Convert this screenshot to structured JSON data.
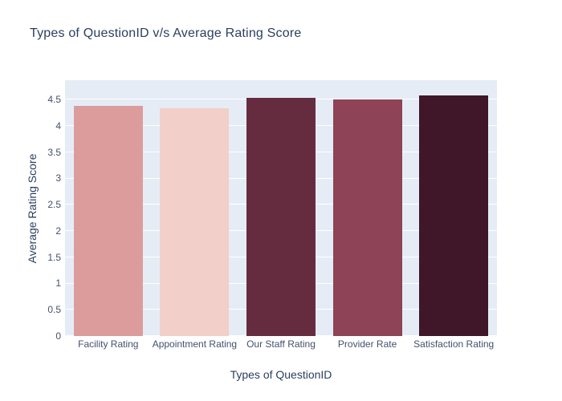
{
  "chart_data": {
    "type": "bar",
    "title": "Types of QuestionID v/s Average Rating Score",
    "xlabel": "Types of QuestionID",
    "ylabel": "Average Rating Score",
    "categories": [
      "Facility Rating",
      "Appointment Rating",
      "Our Staff Rating",
      "Provider Rate",
      "Satisfaction Rating"
    ],
    "values": [
      4.38,
      4.34,
      4.54,
      4.5,
      4.58
    ],
    "bar_colors": [
      "#DD9C9C",
      "#F3CFC9",
      "#652C40",
      "#8E4356",
      "#3F1728"
    ],
    "yticks": [
      0,
      0.5,
      1,
      1.5,
      2,
      2.5,
      3,
      3.5,
      4,
      4.5
    ],
    "ylim": [
      0,
      4.87
    ],
    "grid": true,
    "legend": false,
    "plot_bg_color": "#E5ECF6",
    "grid_color": "#FFFFFF",
    "title_color": "#2A3F5F",
    "axis_title_color": "#2A3F5F",
    "tick_label_color": "#42516D"
  }
}
